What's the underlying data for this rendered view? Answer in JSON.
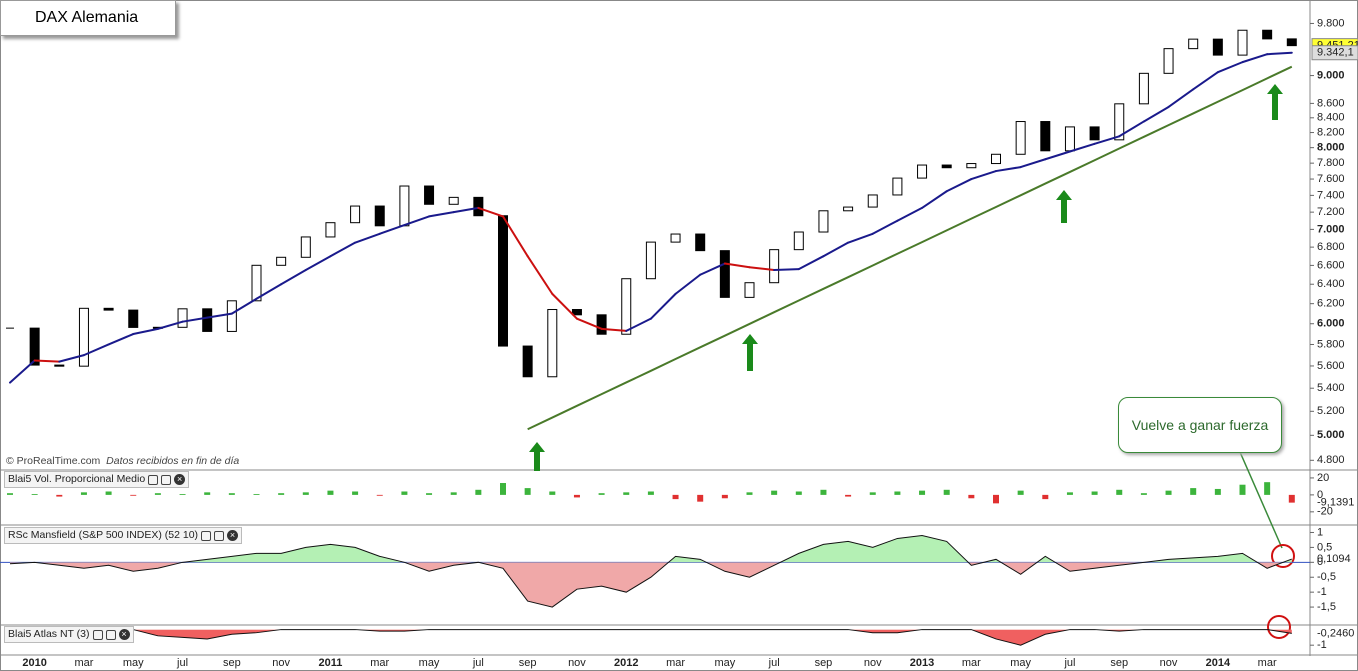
{
  "chart_data": [
    {
      "type": "candlestick",
      "title": "DAX Alemania",
      "source": "© ProRealTime.com",
      "note": "Datos recibidos en fin de día",
      "annotation": "Vuelve a ganar fuerza",
      "log_scale": true,
      "ylim": [
        4740,
        10100
      ],
      "yticks": [
        {
          "value": 4800,
          "label": "4.800"
        },
        {
          "value": 5000,
          "label": "5.000"
        },
        {
          "value": 5200,
          "label": "5.200"
        },
        {
          "value": 5400,
          "label": "5.400"
        },
        {
          "value": 5600,
          "label": "5.600"
        },
        {
          "value": 5800,
          "label": "5.800"
        },
        {
          "value": 6000,
          "label": "6.000"
        },
        {
          "value": 6200,
          "label": "6.200"
        },
        {
          "value": 6400,
          "label": "6.400"
        },
        {
          "value": 6600,
          "label": "6.600"
        },
        {
          "value": 6800,
          "label": "6.800"
        },
        {
          "value": 7000,
          "label": "7.000"
        },
        {
          "value": 7200,
          "label": "7.200"
        },
        {
          "value": 7400,
          "label": "7.400"
        },
        {
          "value": 7600,
          "label": "7.600"
        },
        {
          "value": 7800,
          "label": "7.800"
        },
        {
          "value": 8000,
          "label": "8.000"
        },
        {
          "value": 8200,
          "label": "8.200"
        },
        {
          "value": 8400,
          "label": "8.400"
        },
        {
          "value": 8600,
          "label": "8.600"
        },
        {
          "value": 9000,
          "label": "9.000"
        },
        {
          "value": 9800,
          "label": "9.800"
        }
      ],
      "categories": [
        null,
        "2010",
        null,
        "mar",
        null,
        "may",
        null,
        "jul",
        null,
        "sep",
        null,
        "nov",
        null,
        "2011",
        null,
        "mar",
        null,
        "may",
        null,
        "jul",
        null,
        "sep",
        null,
        "nov",
        null,
        "2012",
        null,
        "mar",
        null,
        "may",
        null,
        "jul",
        null,
        "sep",
        null,
        "nov",
        null,
        "2013",
        null,
        "mar",
        null,
        "may",
        null,
        "jul",
        null,
        "sep",
        null,
        "nov",
        null,
        "2014",
        null,
        "mar",
        null
      ],
      "values": [
        5957,
        5608,
        5598,
        6153,
        6135,
        5964,
        5965,
        6148,
        5925,
        6229,
        6601,
        6688,
        6914,
        7077,
        7272,
        7041,
        7514,
        7293,
        7376,
        7158,
        5785,
        5502,
        6141,
        6088,
        5898,
        6458,
        6856,
        6947,
        6761,
        6264,
        6416,
        6772,
        6970,
        7216,
        7260,
        7405,
        7612,
        7776,
        7742,
        7795,
        7914,
        8349,
        7959,
        8276,
        8103,
        8594,
        9033,
        9405,
        9552,
        9306,
        9692,
        9556,
        9451.21
      ],
      "value_labels": [
        null,
        null,
        null,
        null,
        null,
        null,
        null,
        null,
        null,
        null,
        null,
        null,
        null,
        null,
        null,
        null,
        null,
        null,
        null,
        null,
        null,
        null,
        null,
        null,
        null,
        null,
        null,
        null,
        null,
        null,
        null,
        null,
        null,
        null,
        null,
        null,
        null,
        null,
        null,
        null,
        null,
        null,
        null,
        null,
        null,
        null,
        null,
        null,
        null,
        null,
        null,
        null,
        "9.451,21"
      ],
      "up_color": "#ffffff",
      "down_color": "#000000",
      "label_color": "#ffff33",
      "moving_average": {
        "color": "#1a1a8c",
        "down_color": "#cc1010",
        "values": [
          5450,
          5650,
          5640,
          5700,
          5800,
          5900,
          5950,
          6020,
          6060,
          6100,
          6250,
          6400,
          6550,
          6700,
          6850,
          6950,
          7050,
          7150,
          7200,
          7250,
          7150,
          6700,
          6300,
          6050,
          5950,
          5930,
          6050,
          6300,
          6500,
          6620,
          6580,
          6550,
          6560,
          6700,
          6850,
          6950,
          7100,
          7250,
          7450,
          7600,
          7700,
          7750,
          7850,
          7950,
          8050,
          8150,
          8350,
          8550,
          8800,
          9050,
          9200,
          9320,
          9342.1
        ],
        "value_labels": [
          null,
          null,
          null,
          null,
          null,
          null,
          null,
          null,
          null,
          null,
          null,
          null,
          null,
          null,
          null,
          null,
          null,
          null,
          null,
          null,
          null,
          null,
          null,
          null,
          null,
          null,
          null,
          null,
          null,
          null,
          null,
          null,
          null,
          null,
          null,
          null,
          null,
          null,
          null,
          null,
          null,
          null,
          null,
          null,
          null,
          null,
          null,
          null,
          null,
          null,
          null,
          null,
          "9.342,1"
        ]
      },
      "trendline": {
        "color": "#4a7a2a",
        "values": [
          null,
          null,
          null,
          null,
          null,
          null,
          null,
          null,
          null,
          null,
          null,
          null,
          null,
          null,
          null,
          null,
          null,
          null,
          null,
          null,
          null,
          5050,
          5147,
          5247,
          5348,
          5451,
          5556,
          5664,
          5773,
          5884,
          5998,
          6114,
          6232,
          6352,
          6474,
          6599,
          6727,
          6856,
          6989,
          7124,
          7261,
          7401,
          7544,
          7689,
          7837,
          7989,
          8143,
          8300,
          8460,
          8623,
          8789,
          8959,
          9132
        ]
      }
    },
    {
      "type": "bar",
      "title": "Blai5 Vol. Proporcional Medio",
      "ylim": [
        -32,
        27
      ],
      "yticks": [
        20,
        0,
        -20
      ],
      "positive_color": "#3cb43c",
      "negative_color": "#e03030",
      "values": [
        2,
        1,
        -2,
        3,
        4,
        -1,
        2,
        1,
        3,
        2,
        1,
        2,
        3,
        5,
        4,
        -1,
        4,
        2,
        3,
        6,
        14,
        8,
        4,
        -3,
        2,
        3,
        4,
        -5,
        -8,
        -4,
        3,
        5,
        4,
        6,
        -2,
        3,
        4,
        5,
        6,
        -4,
        -10,
        5,
        -5,
        3,
        4,
        6,
        2,
        5,
        8,
        7,
        12,
        15,
        -9.1391
      ],
      "value_labels": [
        null,
        null,
        null,
        null,
        null,
        null,
        null,
        null,
        null,
        null,
        null,
        null,
        null,
        null,
        null,
        null,
        null,
        null,
        null,
        null,
        null,
        null,
        null,
        null,
        null,
        null,
        null,
        null,
        null,
        null,
        null,
        null,
        null,
        null,
        null,
        null,
        null,
        null,
        null,
        null,
        null,
        null,
        null,
        null,
        null,
        null,
        null,
        null,
        null,
        null,
        null,
        null,
        "-9,1391"
      ]
    },
    {
      "type": "area",
      "title": "RSc Mansfield (S&P 500 INDEX) (52 10)",
      "ylim": [
        -2,
        1.15
      ],
      "yticks": [
        1,
        {
          "value": 0.5,
          "label": "0,5"
        },
        0,
        {
          "value": -0.5,
          "label": "-0,5"
        },
        -1,
        {
          "value": -1.5,
          "label": "-1,5"
        }
      ],
      "positive_color": "#b4f0b4",
      "negative_color": "#f0a8a8",
      "line_color": "#111111",
      "zero_color": "#3050c0",
      "values": [
        -0.05,
        0,
        -0.1,
        -0.2,
        -0.1,
        -0.3,
        -0.2,
        0,
        0.1,
        0.2,
        0.3,
        0.3,
        0.5,
        0.6,
        0.5,
        0.2,
        0,
        -0.3,
        -0.1,
        0,
        -0.2,
        -1.3,
        -1.5,
        -0.9,
        -0.8,
        -1.0,
        -0.5,
        0.2,
        0.1,
        -0.3,
        -0.5,
        -0.1,
        0.3,
        0.6,
        0.7,
        0.5,
        0.8,
        0.9,
        0.7,
        -0.1,
        0.1,
        -0.4,
        0.2,
        -0.3,
        -0.2,
        -0.1,
        0,
        0.1,
        0.15,
        0.2,
        0.3,
        -0.2,
        0.1094
      ],
      "value_labels": [
        null,
        null,
        null,
        null,
        null,
        null,
        null,
        null,
        null,
        null,
        null,
        null,
        null,
        null,
        null,
        null,
        null,
        null,
        null,
        null,
        null,
        null,
        null,
        null,
        null,
        null,
        null,
        null,
        null,
        null,
        null,
        null,
        null,
        null,
        null,
        null,
        null,
        null,
        null,
        null,
        null,
        null,
        null,
        null,
        null,
        null,
        null,
        null,
        null,
        null,
        null,
        null,
        "0,1094"
      ]
    },
    {
      "type": "area",
      "title": "Blai5 Atlas NT (3)",
      "ylim": [
        -1.5,
        0.1
      ],
      "yticks": [
        -1
      ],
      "positive_color": "#b4f0b4",
      "negative_color": "#f06060",
      "line_color": "#111111",
      "values": [
        0,
        0,
        0,
        0,
        0,
        0,
        -0.4,
        -0.5,
        -0.6,
        -0.3,
        -0.2,
        0,
        0,
        0,
        0,
        -0.1,
        -0.1,
        0,
        0,
        0,
        0,
        0,
        0,
        0,
        0,
        0,
        0,
        0,
        0,
        0,
        0,
        0,
        0,
        0,
        0,
        -0.2,
        -0.2,
        0,
        0,
        0,
        -0.6,
        -1,
        -0.3,
        0,
        0,
        -0.1,
        0,
        0,
        0,
        0,
        0,
        0,
        -0.246
      ],
      "value_labels": [
        null,
        null,
        null,
        null,
        null,
        null,
        null,
        null,
        null,
        null,
        null,
        null,
        null,
        null,
        null,
        null,
        null,
        null,
        null,
        null,
        null,
        null,
        null,
        null,
        null,
        null,
        null,
        null,
        null,
        null,
        null,
        null,
        null,
        null,
        null,
        null,
        null,
        null,
        null,
        null,
        null,
        null,
        null,
        null,
        null,
        null,
        null,
        null,
        null,
        null,
        null,
        null,
        "-0,2460"
      ]
    }
  ]
}
